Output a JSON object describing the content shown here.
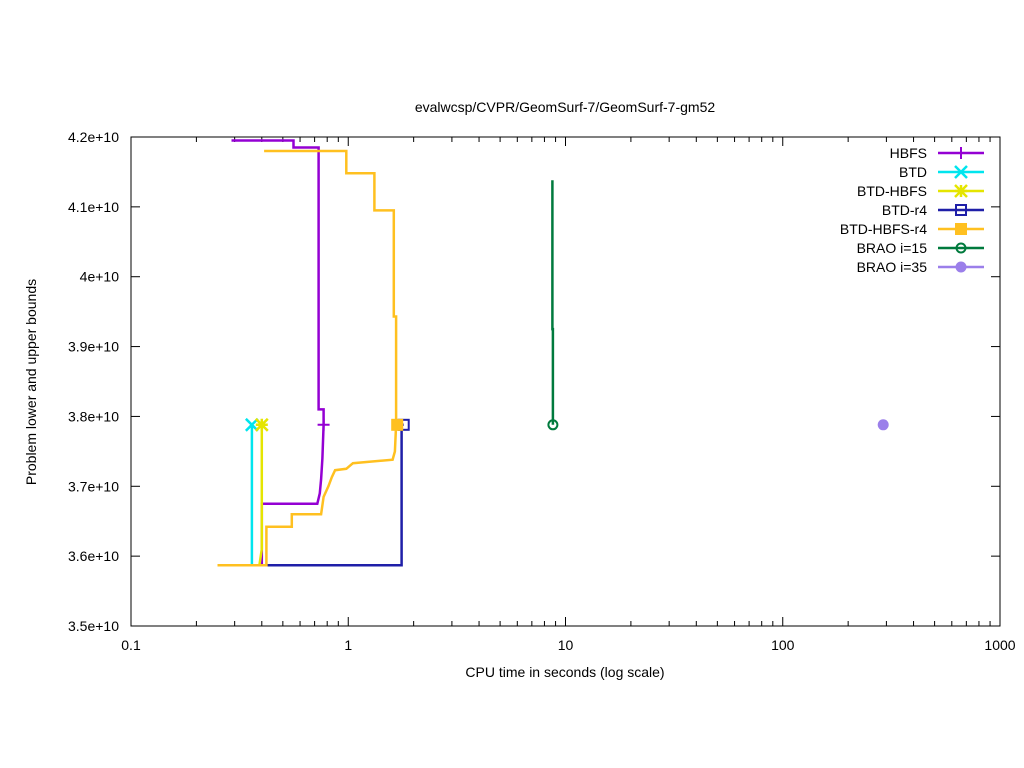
{
  "chart_data": {
    "type": "line",
    "title": "evalwcsp/CVPR/GeomSurf-7/GeomSurf-7-gm52",
    "xlabel": "CPU time in seconds (log scale)",
    "ylabel": "Problem lower and upper bounds",
    "xscale": "log",
    "xlim": [
      0.1,
      1000
    ],
    "ylim": [
      35000000000,
      42000000000
    ],
    "xticks": [
      0.1,
      1,
      10,
      100,
      1000
    ],
    "xtick_labels": [
      "0.1",
      "1",
      "10",
      "100",
      "1000"
    ],
    "yticks": [
      35000000000,
      36000000000,
      37000000000,
      38000000000,
      39000000000,
      40000000000,
      41000000000,
      42000000000
    ],
    "ytick_labels": [
      "3.5e+10",
      "3.6e+10",
      "3.7e+10",
      "3.8e+10",
      "3.9e+10",
      "4e+10",
      "4.1e+10",
      "4.2e+10"
    ],
    "grid": false,
    "legend_position": "top-right",
    "series": [
      {
        "name": "HBFS",
        "color": "#9400d3",
        "marker": "plus",
        "upper": [
          [
            0.29,
            41950000000
          ],
          [
            0.56,
            41950000000
          ],
          [
            0.56,
            41850000000
          ],
          [
            0.73,
            41850000000
          ],
          [
            0.73,
            38100000000
          ],
          [
            0.77,
            38100000000
          ],
          [
            0.77,
            37880000000
          ]
        ],
        "lower": [
          [
            0.4,
            35870000000
          ],
          [
            0.4,
            36750000000
          ],
          [
            0.72,
            36750000000
          ],
          [
            0.74,
            36900000000
          ],
          [
            0.75,
            37100000000
          ],
          [
            0.76,
            37400000000
          ],
          [
            0.77,
            37880000000
          ]
        ],
        "final": [
          0.77,
          37880000000
        ]
      },
      {
        "name": "BTD",
        "color": "#00e5ee",
        "marker": "x",
        "upper": [
          [
            0.36,
            37880000000
          ]
        ],
        "lower": [
          [
            0.36,
            35870000000
          ],
          [
            0.36,
            37880000000
          ]
        ],
        "final": [
          0.36,
          37880000000
        ]
      },
      {
        "name": "BTD-HBFS",
        "color": "#e5e500",
        "marker": "star",
        "upper": [
          [
            0.4,
            37880000000
          ]
        ],
        "lower": [
          [
            0.39,
            35870000000
          ],
          [
            0.4,
            36100000000
          ],
          [
            0.4,
            37880000000
          ]
        ],
        "final": [
          0.4,
          37880000000
        ]
      },
      {
        "name": "BTD-r4",
        "color": "#1f1fa8",
        "marker": "open-square",
        "upper": [
          [
            1.8,
            37880000000
          ]
        ],
        "lower": [
          [
            0.39,
            35870000000
          ],
          [
            1.76,
            35870000000
          ],
          [
            1.76,
            37880000000
          ],
          [
            1.8,
            37880000000
          ]
        ],
        "final": [
          1.8,
          37880000000
        ]
      },
      {
        "name": "BTD-HBFS-r4",
        "color": "#ffc020",
        "marker": "filled-square",
        "upper": [
          [
            0.41,
            41800000000
          ],
          [
            0.98,
            41800000000
          ],
          [
            0.98,
            41480000000
          ],
          [
            1.32,
            41480000000
          ],
          [
            1.32,
            40950000000
          ],
          [
            1.62,
            40950000000
          ],
          [
            1.62,
            39430000000
          ],
          [
            1.66,
            39430000000
          ],
          [
            1.66,
            37880000000
          ]
        ],
        "lower": [
          [
            0.25,
            35870000000
          ],
          [
            0.42,
            35870000000
          ],
          [
            0.42,
            36420000000
          ],
          [
            0.55,
            36420000000
          ],
          [
            0.55,
            36600000000
          ],
          [
            0.75,
            36600000000
          ],
          [
            0.77,
            36850000000
          ],
          [
            0.81,
            37000000000
          ],
          [
            0.84,
            37130000000
          ],
          [
            0.87,
            37230000000
          ],
          [
            0.98,
            37250000000
          ],
          [
            1.05,
            37330000000
          ],
          [
            1.25,
            37350000000
          ],
          [
            1.6,
            37380000000
          ],
          [
            1.64,
            37500000000
          ],
          [
            1.66,
            37880000000
          ]
        ],
        "final": [
          1.68,
          37880000000
        ]
      },
      {
        "name": "BRAO i=15",
        "color": "#007a3d",
        "marker": "open-circle",
        "upper": [
          [
            8.7,
            41380000000
          ],
          [
            8.7,
            39250000000
          ],
          [
            8.75,
            39250000000
          ],
          [
            8.75,
            37880000000
          ]
        ],
        "lower": [],
        "final": [
          8.75,
          37880000000
        ]
      },
      {
        "name": "BRAO i=35",
        "color": "#9b7fea",
        "marker": "filled-circle",
        "upper": [],
        "lower": [],
        "final": [
          290,
          37880000000
        ]
      }
    ]
  }
}
